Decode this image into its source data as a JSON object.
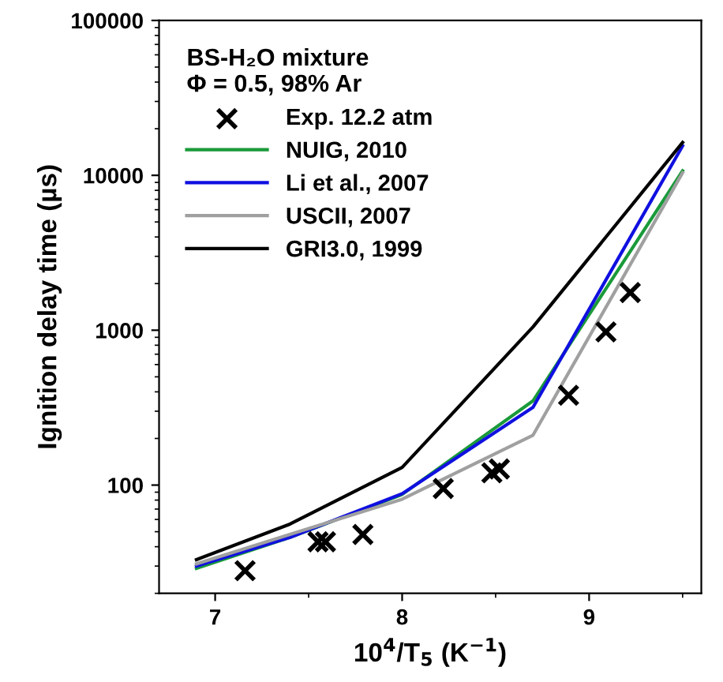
{
  "chart_data": {
    "type": "line",
    "xlabel": "10$^{4}$/T$_{5}$ (K$^{−1}$)",
    "ylabel": "Ignition delay time (µs)",
    "legend_title": "BS-H₂O mixture\nΦ = 0.5, 98% Ar",
    "series": [
      {
        "name": "Exp. 12.2 atm",
        "type": "scatter",
        "marker": "cross",
        "color": "#000000",
        "x": [
          7.16,
          7.55,
          7.59,
          7.79,
          8.22,
          8.48,
          8.52,
          8.89,
          9.09,
          9.22
        ],
        "values": [
          28,
          43,
          43,
          48,
          95,
          120,
          127,
          380,
          975,
          1750
        ]
      },
      {
        "name": "NUIG, 2010",
        "color": "#1a9a3a",
        "x": [
          6.9,
          7.4,
          8.0,
          8.7,
          9.5
        ],
        "values": [
          29,
          46,
          87,
          350,
          10700
        ]
      },
      {
        "name": "Li et al., 2007",
        "color": "#1010e0",
        "x": [
          6.9,
          7.4,
          8.0,
          8.7,
          9.5
        ],
        "values": [
          30,
          46,
          88,
          318,
          15500
        ]
      },
      {
        "name": "USCII, 2007",
        "color": "#a0a0a0",
        "x": [
          6.9,
          7.4,
          8.0,
          8.7,
          9.5
        ],
        "values": [
          31,
          48,
          81,
          210,
          10400
        ]
      },
      {
        "name": "GRI3.0, 1999",
        "color": "#000000",
        "x": [
          6.9,
          7.4,
          8.0,
          8.7,
          9.5
        ],
        "values": [
          33,
          56,
          130,
          1050,
          16300
        ]
      }
    ],
    "log": "y",
    "xlim": [
      6.7,
      9.6
    ],
    "xticks": [
      7,
      8,
      9
    ],
    "ylim": [
      20,
      100000
    ],
    "yticks": [
      100,
      1000,
      10000,
      100000
    ],
    "grid": false,
    "legend": "top left"
  }
}
